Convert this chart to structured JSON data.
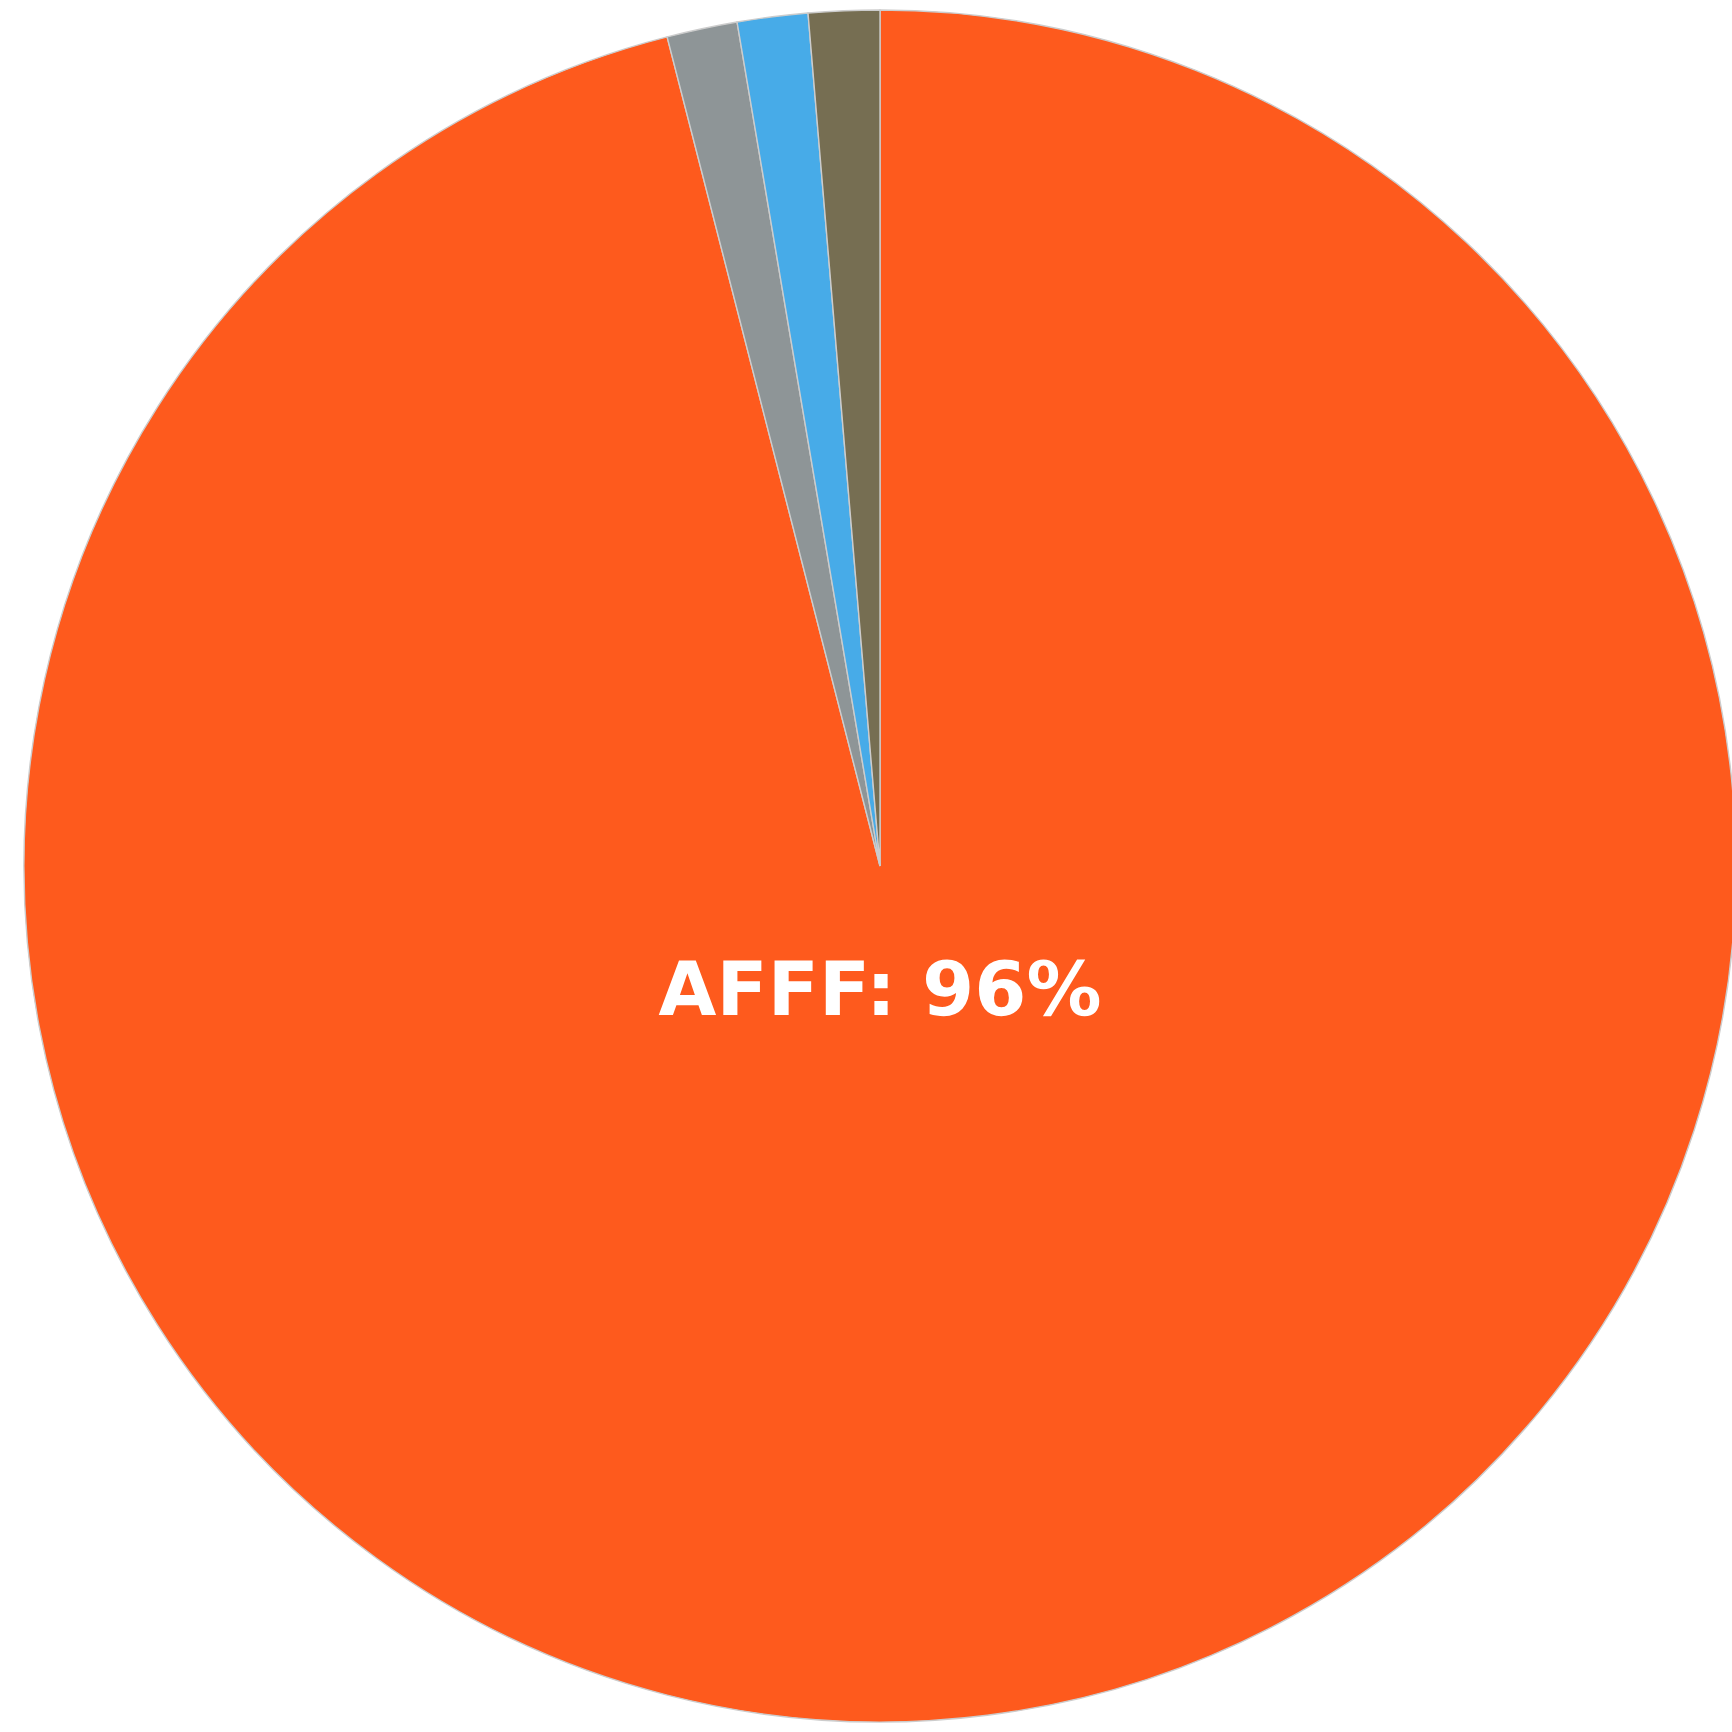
{
  "chart_data": {
    "type": "pie",
    "categories": [
      "AFFF",
      null,
      null,
      null
    ],
    "values": [
      96,
      1.33,
      1.33,
      1.34
    ],
    "colors": [
      "#fe5a1d",
      "#8e9597",
      "#47abe8",
      "#766e52"
    ],
    "value_labels": [
      "96%",
      null,
      null,
      null
    ]
  }
}
